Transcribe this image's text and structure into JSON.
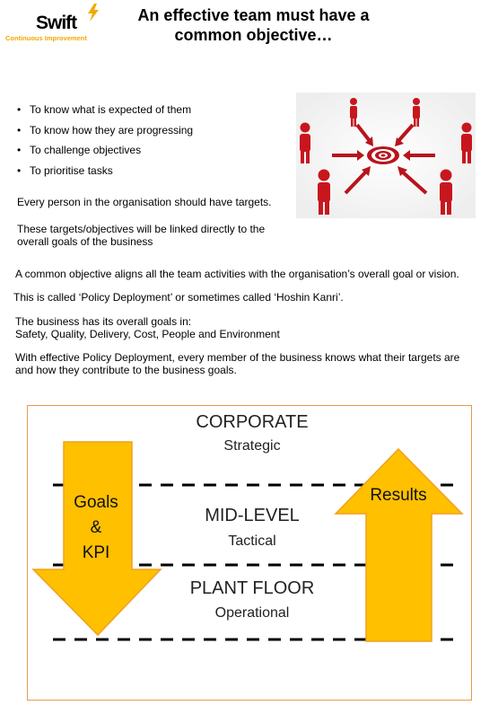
{
  "logo": {
    "word": "Swift",
    "subtitle": "Continuous Improvement",
    "brand_color": "#f2a900"
  },
  "title": {
    "line1": "An effective team must have a",
    "line2": "common objective…"
  },
  "bullets": [
    "To know what is expected of them",
    "To know how they are progressing",
    "To challenge objectives",
    "To prioritise tasks"
  ],
  "paragraphs": {
    "targets": "Every person in the organisation should have targets.",
    "linked_line1": "These targets/objectives will be linked directly to the",
    "linked_line2": "overall goals of the business",
    "common": "A common objective aligns all the team activities with the organisation’s overall goal or vision.",
    "called": "This is called ‘Policy Deployment’ or sometimes called ‘Hoshin Kanri’.",
    "goals_line1": "The business has its overall goals in:",
    "goals_line2": "Safety, Quality, Delivery, Cost, People and Environment",
    "effective_line1": "With effective Policy Deployment, every member of the business knows what their targets are",
    "effective_line2": "and how they contribute to the business goals."
  },
  "diagram": {
    "levels": [
      {
        "name": "CORPORATE",
        "sub": "Strategic"
      },
      {
        "name": "MID-LEVEL",
        "sub": "Tactical"
      },
      {
        "name": "PLANT FLOOR",
        "sub": "Operational"
      }
    ],
    "down_arrow": {
      "line1": "Goals",
      "line2": "&",
      "line3": "KPI"
    },
    "up_arrow": {
      "label": "Results"
    },
    "arrow_color": "#ffc000",
    "arrow_outline": "#f0a020",
    "border_color": "#e59a4b"
  },
  "image": {
    "icon": "target-people-icon"
  }
}
